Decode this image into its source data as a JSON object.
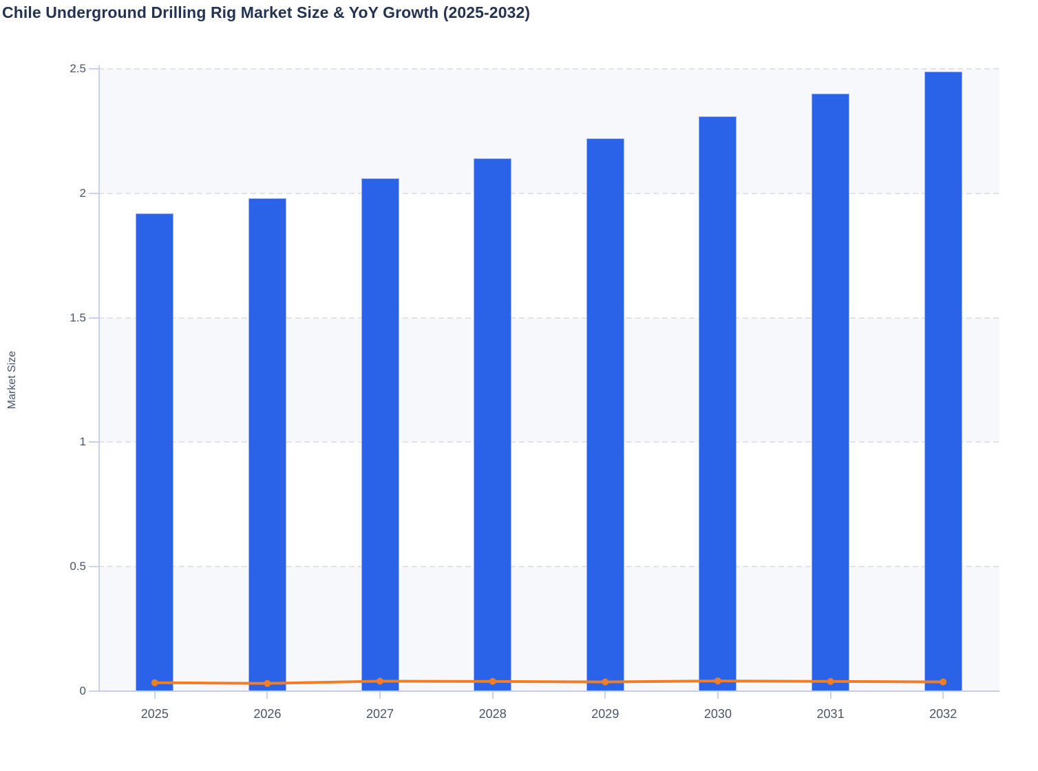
{
  "title": "Chile Underground Drilling Rig Market Size & YoY Growth (2025-2032)",
  "y_axis": {
    "label": "Market Size"
  },
  "chart_data": {
    "type": "bar",
    "subtype": "bar-with-line-overlay",
    "title": "Chile Underground Drilling Rig Market Size & YoY Growth (2025-2032)",
    "categories": [
      "2025",
      "2026",
      "2027",
      "2028",
      "2029",
      "2030",
      "2031",
      "2032"
    ],
    "series": [
      {
        "name": "Market Size",
        "type": "bar",
        "color": "#2A63E8",
        "values": [
          1.92,
          1.98,
          2.06,
          2.14,
          2.22,
          2.31,
          2.4,
          2.49
        ]
      },
      {
        "name": "YoY Growth",
        "type": "line",
        "color": "#F07E28",
        "values": [
          0.034,
          0.031,
          0.04,
          0.039,
          0.037,
          0.041,
          0.039,
          0.037
        ]
      }
    ],
    "xlabel": "",
    "ylabel": "Market Size",
    "ylim": [
      0,
      2.5
    ],
    "yticks": [
      0,
      0.5,
      1,
      1.5,
      2,
      2.5
    ],
    "ytick_labels": [
      "0",
      "0.5",
      "1",
      "1.5",
      "2",
      "2.5"
    ],
    "grid": "horizontal-dashed",
    "legend_position": "none",
    "alternating_bands": true
  },
  "colors": {
    "background": "#FFFFFF",
    "band": "#F7F8FB",
    "gridline": "#E2E3E9",
    "axis_line": "#C5CBE8",
    "bar_fill": "#2A63E8",
    "bar_stroke": "#9AB1F3",
    "line": "#F07E28",
    "marker": "#F07E28",
    "title_text": "#243352",
    "tick_text": "#4A5568",
    "axis_title_text": "#44546A"
  }
}
